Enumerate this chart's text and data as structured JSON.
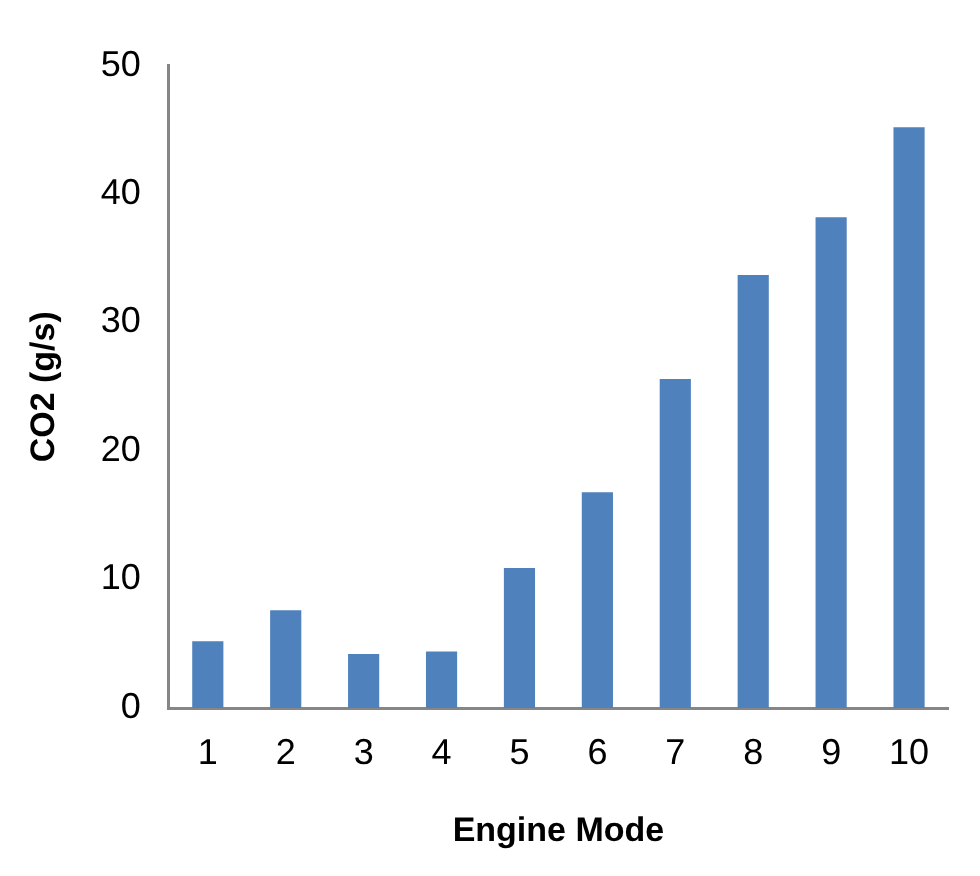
{
  "chart_data": {
    "type": "bar",
    "xlabel": "Engine Mode",
    "ylabel": "CO2 (g/s)",
    "categories": [
      "1",
      "2",
      "3",
      "4",
      "5",
      "6",
      "7",
      "8",
      "9",
      "10"
    ],
    "values": [
      5.2,
      7.6,
      4.2,
      4.4,
      10.9,
      16.8,
      25.6,
      33.7,
      38.2,
      45.2
    ],
    "color": "#4f81bd",
    "ylim": [
      0,
      50
    ],
    "yticks": [
      0,
      10,
      20,
      30,
      40,
      50
    ],
    "grid": false,
    "legend": false
  }
}
